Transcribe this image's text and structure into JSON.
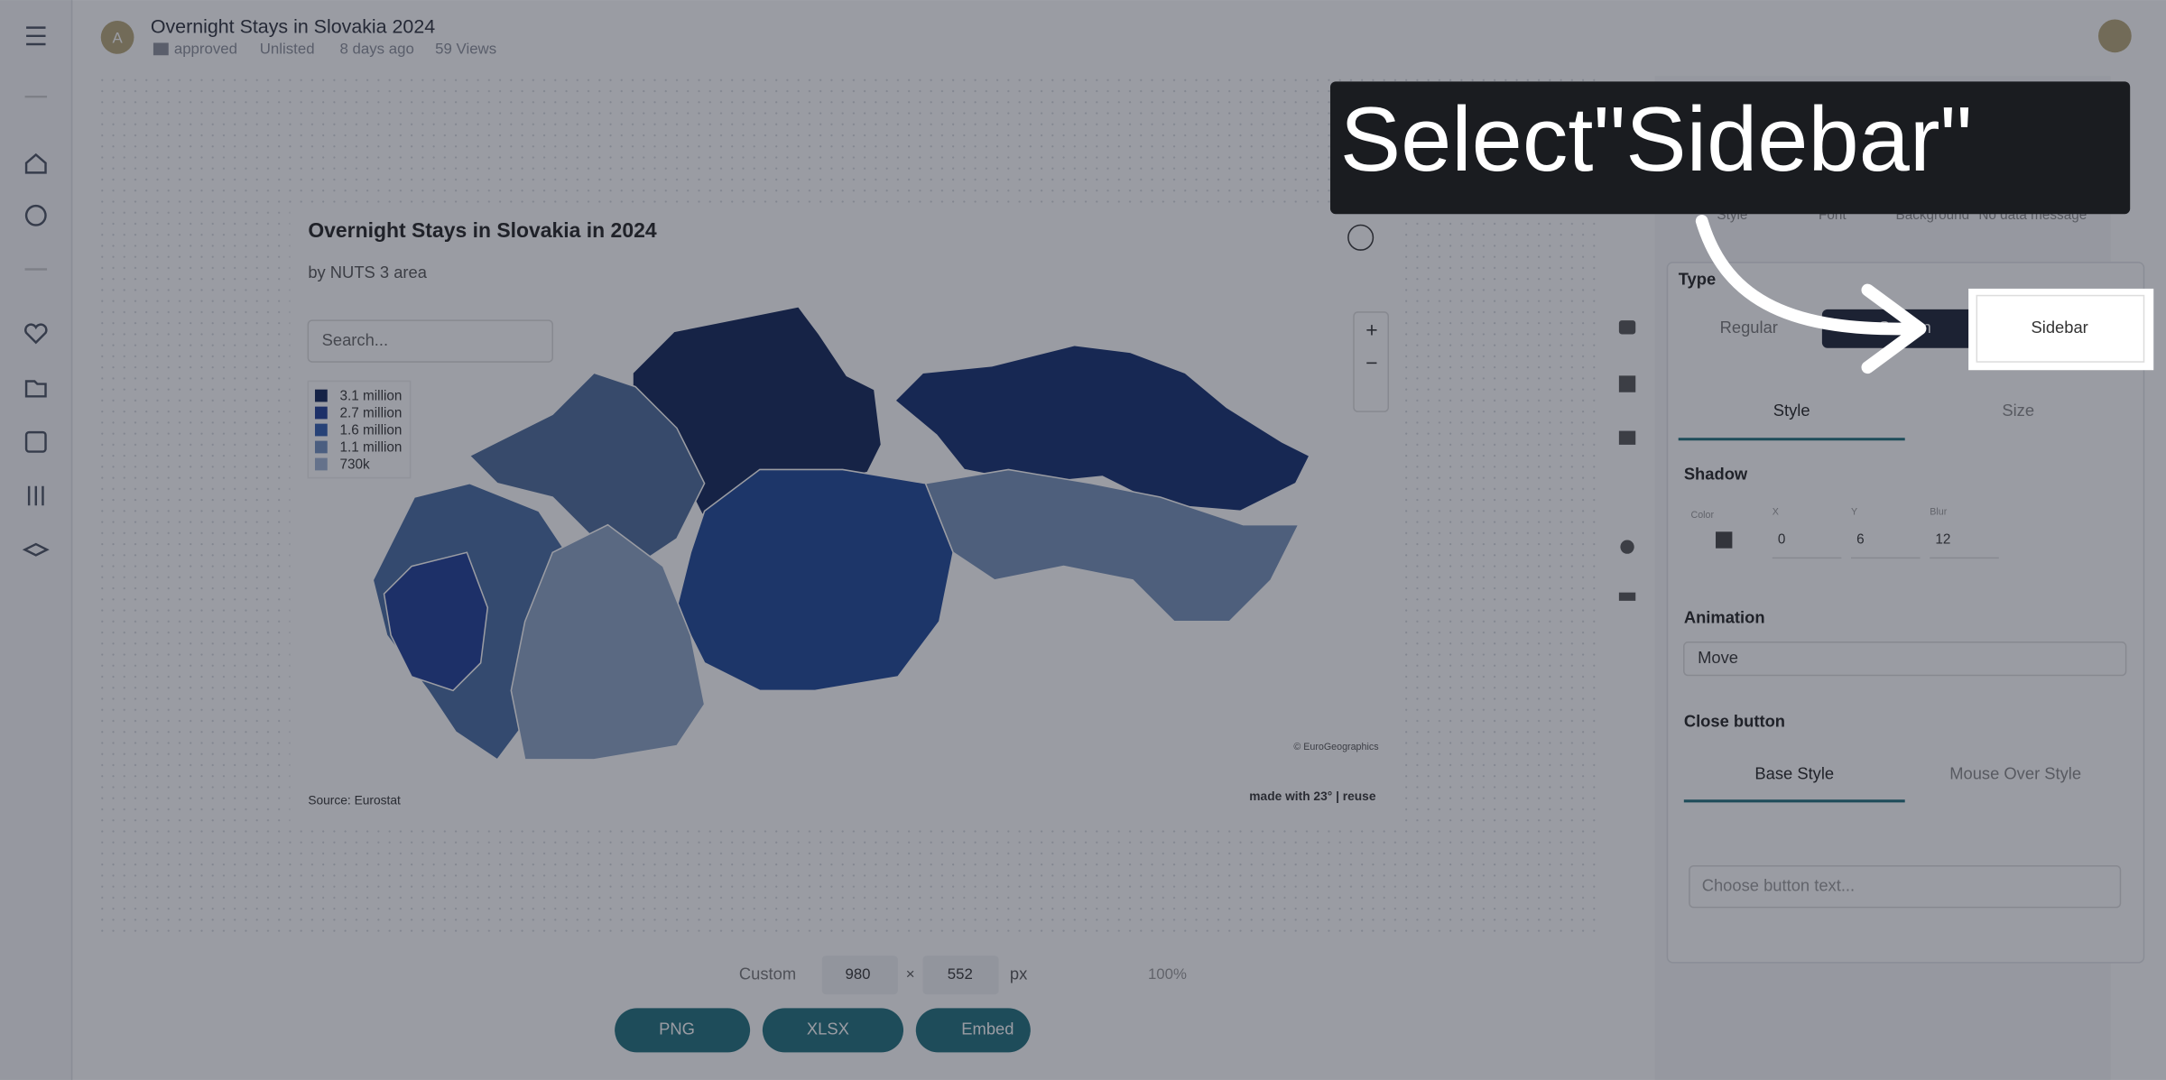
{
  "header": {
    "title": "Overnight Stays in Slovakia 2024",
    "folder": "approved",
    "visibility": "Unlisted",
    "age": "8 days ago",
    "views": "59 Views"
  },
  "map": {
    "title": "Overnight Stays in Slovakia in 2024",
    "subtitle": "by NUTS 3 area",
    "search": "Search...",
    "legend": [
      "3.1 million",
      "2.7 million",
      "1.6 million",
      "1.1 million",
      "730k"
    ],
    "credit": "© EuroGeographics",
    "source": "Source: Eurostat",
    "made_with": "made with 23° | reuse"
  },
  "panel": {
    "tabs": [
      "Style",
      "Font",
      "Background",
      "No data message"
    ],
    "type_label": "Type",
    "type_options": [
      "Regular",
      "Screen",
      "Sidebar"
    ],
    "subtabs": [
      "Style",
      "Size"
    ],
    "shadow": {
      "label": "Shadow",
      "color_label": "Color",
      "fields": [
        "X",
        "Y",
        "Blur"
      ],
      "values": [
        "0",
        "6",
        "12"
      ]
    },
    "animation": {
      "label": "Animation",
      "value": "Move"
    },
    "close_button": {
      "label": "Close button",
      "tabs": [
        "Base Style",
        "Mouse Over Style"
      ],
      "placeholder": "Choose button text..."
    }
  },
  "toolbar": {
    "preset": "Custom",
    "width": "980",
    "height": "552",
    "unit": "px",
    "zoom": "100%",
    "buttons": [
      "PNG",
      "XLSX",
      "Embed"
    ]
  },
  "tooltip": {
    "text": "Select\"Sidebar\""
  }
}
